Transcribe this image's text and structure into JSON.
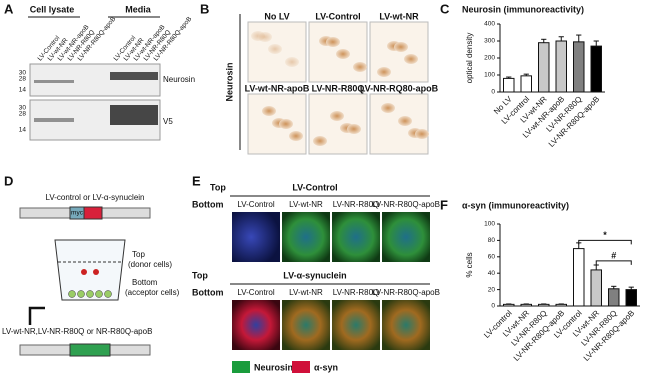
{
  "panels": {
    "A": {
      "label": "A",
      "groups": [
        "Cell lysate",
        "Media"
      ],
      "lanes": [
        "LV-Control",
        "LV-wt-NR",
        "LV-wt-NR-apoB",
        "LV-NR-R80Q",
        "LV-NR-R80Q-apoB"
      ],
      "markers": [
        "30",
        "28",
        "14"
      ],
      "blots": [
        "Neurosin",
        "V5"
      ]
    },
    "B": {
      "label": "B",
      "stain": "Neurosin",
      "images": [
        "No LV",
        "LV-Control",
        "LV-wt-NR",
        "LV-wt-NR-apoB",
        "LV-NR-R80Q",
        "LV-NR-RQ80-apoB"
      ]
    },
    "D": {
      "label": "D",
      "donor_vector": "LV-control or LV-α-synuclein",
      "top": "Top",
      "top_note": "(donor cells)",
      "bottom": "Bottom",
      "bottom_note": "(acceptor cells)",
      "acceptor_vector": "LV-wt-NR,LV-NR-R80Q or NR-R80Q-apoB",
      "insert": "myc"
    },
    "E": {
      "label": "E",
      "top": "Top",
      "bottom": "Bottom",
      "conditions": [
        "LV-Control",
        "LV-α-synuclein"
      ],
      "columns": [
        "LV-Control",
        "LV-wt-NR",
        "LV-NR-R80Q",
        "LV-NR-R80Q-apoB"
      ],
      "legend": [
        {
          "name": "Neurosin",
          "color": "#1a9c3c"
        },
        {
          "name": "α-syn",
          "color": "#d0103a"
        }
      ]
    }
  },
  "chart_data": [
    {
      "type": "bar",
      "panel": "C",
      "title": "Neurosin (immunoreactivity)",
      "y_label": "optical density",
      "categories": [
        "No LV",
        "LV-control",
        "LV-wt-NR",
        "LV-wt-NR-apoB",
        "LV-NR-R80Q",
        "LV-NR-R80Q-apoB"
      ],
      "values": [
        80,
        95,
        290,
        300,
        295,
        270
      ],
      "errors": [
        8,
        10,
        20,
        25,
        40,
        30
      ],
      "colors": [
        "#ffffff",
        "#ffffff",
        "#c8c8c8",
        "#c8c8c8",
        "#808080",
        "#000000"
      ],
      "ylim": [
        0,
        400
      ],
      "yticks": [
        0,
        100,
        200,
        300,
        400
      ]
    },
    {
      "type": "bar",
      "panel": "F",
      "title": "α-syn (immunoreactivity)",
      "y_label": "% cells",
      "categories": [
        "LV-control",
        "LV-wt-NR",
        "LV-NR-R80Q",
        "LV-NR-R80Q-apoB",
        "LV-control",
        "LV-wt-NR",
        "LV-NR-R80Q",
        "LV-NR-R80Q-apoB"
      ],
      "values": [
        2,
        2,
        2,
        2,
        70,
        44,
        21,
        20
      ],
      "errors": [
        0.5,
        0.5,
        0.5,
        0.5,
        7,
        6,
        3,
        3
      ],
      "colors": [
        "#ffffff",
        "#ffffff",
        "#ffffff",
        "#ffffff",
        "#ffffff",
        "#c8c8c8",
        "#808080",
        "#000000"
      ],
      "ylim": [
        0,
        100
      ],
      "yticks": [
        0,
        20,
        40,
        60,
        80,
        100
      ],
      "annotations": [
        "*",
        "#"
      ]
    }
  ]
}
